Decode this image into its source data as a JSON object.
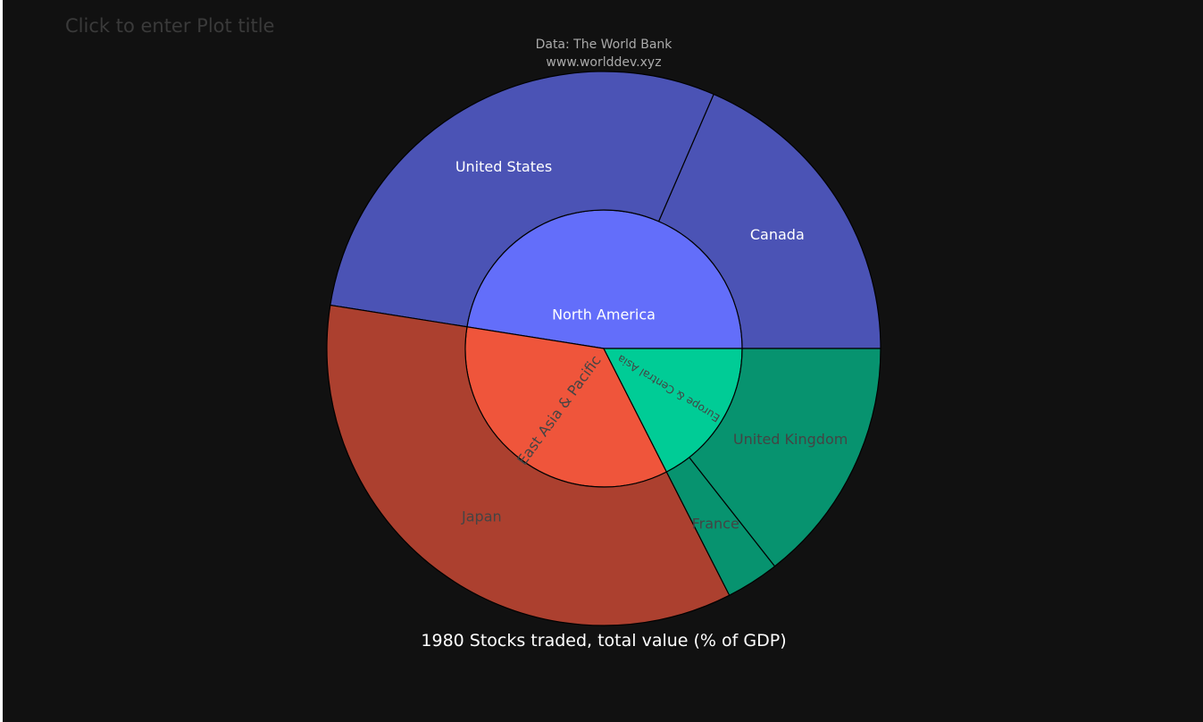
{
  "plot": {
    "title_placeholder": "Click to enter Plot title",
    "background": "#111111"
  },
  "chart_data": {
    "type": "sunburst",
    "annotations": {
      "source_line1": "Data: The World Bank",
      "source_line2": "www.worlddev.xyz",
      "footer": "1980 Stocks traded, total value (% of GDP)"
    },
    "parents": [
      {
        "name": "North America",
        "value": 47.5,
        "color": "#636efa",
        "label_color": "#ffffff"
      },
      {
        "name": "East Asia & Pacific",
        "value": 35.0,
        "color": "#ef553b",
        "label_color": "#444444"
      },
      {
        "name": "Europe & Central Asia",
        "value": 17.5,
        "color": "#00cc96",
        "label_color": "#444444"
      }
    ],
    "children": [
      {
        "name": "United States",
        "parent": "North America",
        "value": 29.0,
        "color": "#4b53b5",
        "label_color": "#ffffff"
      },
      {
        "name": "Canada",
        "parent": "North America",
        "value": 18.5,
        "color": "#4b53b5",
        "label_color": "#ffffff"
      },
      {
        "name": "Japan",
        "parent": "East Asia & Pacific",
        "value": 35.0,
        "color": "#ac402f",
        "label_color": "#444444"
      },
      {
        "name": "United Kingdom",
        "parent": "Europe & Central Asia",
        "value": 14.4,
        "color": "#07936f",
        "label_color": "#444444"
      },
      {
        "name": "France",
        "parent": "Europe & Central Asia",
        "value": 3.1,
        "color": "#07936f",
        "label_color": "#444444"
      }
    ]
  }
}
